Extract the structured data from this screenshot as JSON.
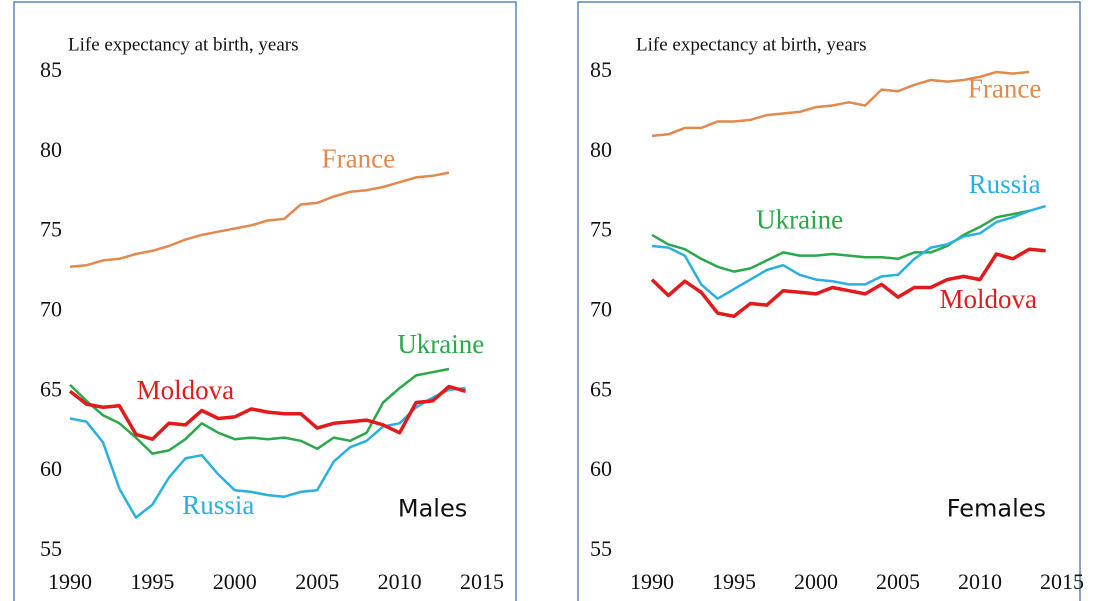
{
  "chart_data": [
    {
      "type": "line",
      "title": "Life expectancy at birth, years",
      "annotation": "Males",
      "x": [
        1990,
        1991,
        1992,
        1993,
        1994,
        1995,
        1996,
        1997,
        1998,
        1999,
        2000,
        2001,
        2002,
        2003,
        2004,
        2005,
        2006,
        2007,
        2008,
        2009,
        2010,
        2011,
        2012,
        2013,
        2014
      ],
      "xlim": [
        1990,
        2015
      ],
      "xticks": [
        1990,
        1995,
        2000,
        2005,
        2010,
        2015
      ],
      "ylim": [
        55,
        85
      ],
      "yticks": [
        55,
        60,
        65,
        70,
        75,
        80,
        85
      ],
      "series": [
        {
          "name": "France",
          "color": "#e2894e",
          "values": [
            72.8,
            72.9,
            73.2,
            73.3,
            73.6,
            73.8,
            74.1,
            74.5,
            74.8,
            75.0,
            75.2,
            75.4,
            75.7,
            75.8,
            76.7,
            76.8,
            77.2,
            77.5,
            77.6,
            77.8,
            78.1,
            78.4,
            78.5,
            78.7,
            null
          ]
        },
        {
          "name": "Ukraine",
          "color": "#2aa84a",
          "values": [
            65.4,
            64.4,
            63.5,
            63.0,
            62.1,
            61.1,
            61.3,
            62.0,
            63.0,
            62.4,
            62.0,
            62.1,
            62.0,
            62.1,
            61.9,
            61.4,
            62.1,
            61.9,
            62.4,
            64.3,
            65.2,
            66.0,
            66.2,
            66.4,
            null
          ]
        },
        {
          "name": "Russia",
          "color": "#2ab0e0",
          "values": [
            63.3,
            63.1,
            61.8,
            58.9,
            57.1,
            57.9,
            59.6,
            60.8,
            61.0,
            59.8,
            58.8,
            58.7,
            58.5,
            58.4,
            58.7,
            58.8,
            60.6,
            61.5,
            61.9,
            62.8,
            63.0,
            64.0,
            64.6,
            65.1,
            65.2
          ]
        },
        {
          "name": "Moldova",
          "color": "#e31a1c",
          "values": [
            65.0,
            64.2,
            64.0,
            64.1,
            62.3,
            62.0,
            63.0,
            62.9,
            63.8,
            63.3,
            63.4,
            63.9,
            63.7,
            63.6,
            63.6,
            62.7,
            63.0,
            63.1,
            63.2,
            62.9,
            62.4,
            64.3,
            64.4,
            65.3,
            65.0
          ]
        }
      ]
    },
    {
      "type": "line",
      "title": "Life expectancy at birth, years",
      "annotation": "Females",
      "x": [
        1990,
        1991,
        1992,
        1993,
        1994,
        1995,
        1996,
        1997,
        1998,
        1999,
        2000,
        2001,
        2002,
        2003,
        2004,
        2005,
        2006,
        2007,
        2008,
        2009,
        2010,
        2011,
        2012,
        2013,
        2014
      ],
      "xlim": [
        1990,
        2015
      ],
      "xticks": [
        1990,
        1995,
        2000,
        2005,
        2010,
        2015
      ],
      "ylim": [
        55,
        85
      ],
      "yticks": [
        55,
        60,
        65,
        70,
        75,
        80,
        85
      ],
      "series": [
        {
          "name": "France",
          "color": "#e2894e",
          "values": [
            81.0,
            81.1,
            81.5,
            81.5,
            81.9,
            81.9,
            82.0,
            82.3,
            82.4,
            82.5,
            82.8,
            82.9,
            83.1,
            82.9,
            83.9,
            83.8,
            84.2,
            84.5,
            84.4,
            84.5,
            84.7,
            85.0,
            84.9,
            85.0,
            null
          ]
        },
        {
          "name": "Ukraine",
          "color": "#2aa84a",
          "values": [
            74.8,
            74.2,
            73.9,
            73.3,
            72.8,
            72.5,
            72.7,
            73.2,
            73.7,
            73.5,
            73.5,
            73.6,
            73.5,
            73.4,
            73.4,
            73.3,
            73.7,
            73.7,
            74.1,
            74.8,
            75.3,
            75.9,
            76.1,
            76.3,
            null
          ]
        },
        {
          "name": "Russia",
          "color": "#2ab0e0",
          "values": [
            74.1,
            74.0,
            73.5,
            71.7,
            70.8,
            71.4,
            72.0,
            72.6,
            72.9,
            72.3,
            72.0,
            71.9,
            71.7,
            71.7,
            72.2,
            72.3,
            73.3,
            74.0,
            74.2,
            74.7,
            74.9,
            75.6,
            75.9,
            76.3,
            76.6
          ]
        },
        {
          "name": "Moldova",
          "color": "#e31a1c",
          "values": [
            72.0,
            71.0,
            71.9,
            71.2,
            69.9,
            69.7,
            70.5,
            70.4,
            71.3,
            71.2,
            71.1,
            71.5,
            71.3,
            71.1,
            71.7,
            70.9,
            71.5,
            71.5,
            72.0,
            72.2,
            72.0,
            73.6,
            73.3,
            73.9,
            73.8
          ]
        }
      ]
    }
  ]
}
